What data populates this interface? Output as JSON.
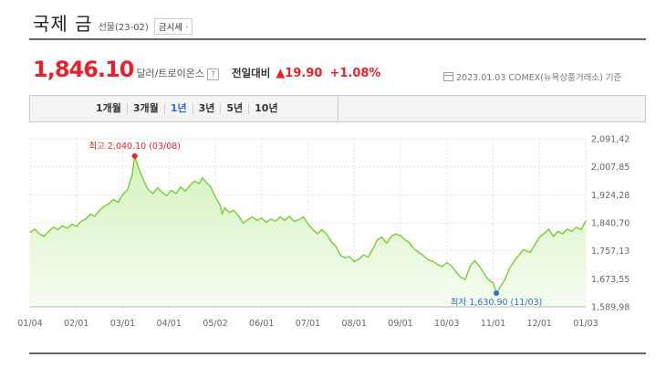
{
  "header": {
    "title": "국제 금",
    "subtitle": "선물(23-02)",
    "button_label": "금시세",
    "button_arrow": "›"
  },
  "quote": {
    "price": "1,846.10",
    "unit": "달러/트로이온스",
    "help": "?",
    "change_label": "전일대비",
    "change_value": "▲19.90",
    "change_pct": "+1.08%",
    "as_of": "2023.01.03  COMEX(뉴욕상품거래소) 기준"
  },
  "tabs": [
    {
      "label": "1개월",
      "active": false
    },
    {
      "label": "3개월",
      "active": false
    },
    {
      "label": "1년",
      "active": true
    },
    {
      "label": "3년",
      "active": false
    },
    {
      "label": "5년",
      "active": false
    },
    {
      "label": "10년",
      "active": false
    }
  ],
  "colors": {
    "accent_red": "#e8222c",
    "active_tab": "#2f6fd3",
    "line": "#79cc34",
    "fill_top": "#d4f2bd",
    "fill_bottom": "#f6fdf1",
    "low_marker": "#2f6fd3"
  },
  "chart_data": {
    "type": "area",
    "ylim": [
      1589.98,
      2091.42
    ],
    "y_ticks": [
      "2,091,42",
      "2,007,85",
      "1,924,28",
      "1,840,70",
      "1,757,13",
      "1,673,55",
      "1,589,98"
    ],
    "x_ticks": [
      "01/04",
      "02/01",
      "03/01",
      "04/01",
      "05/02",
      "06/01",
      "07/01",
      "08/01",
      "09/01",
      "10/03",
      "11/01",
      "12/01",
      "01/03"
    ],
    "grid": true,
    "high_label": "최고 2,040.10 (03/08)",
    "low_label": "최저 1,630.90 (11/03)",
    "high": {
      "x": 2.26,
      "y": 2040.1
    },
    "low": {
      "x": 10.07,
      "y": 1630.9
    },
    "series": [
      {
        "values": [
          [
            0,
            1812
          ],
          [
            0.1,
            1822
          ],
          [
            0.2,
            1808
          ],
          [
            0.3,
            1800
          ],
          [
            0.4,
            1815
          ],
          [
            0.5,
            1828
          ],
          [
            0.6,
            1820
          ],
          [
            0.7,
            1832
          ],
          [
            0.8,
            1824
          ],
          [
            0.9,
            1836
          ],
          [
            1.0,
            1830
          ],
          [
            1.1,
            1845
          ],
          [
            1.2,
            1852
          ],
          [
            1.3,
            1866
          ],
          [
            1.4,
            1860
          ],
          [
            1.5,
            1878
          ],
          [
            1.6,
            1890
          ],
          [
            1.7,
            1898
          ],
          [
            1.8,
            1910
          ],
          [
            1.9,
            1902
          ],
          [
            2.0,
            1925
          ],
          [
            2.1,
            1938
          ],
          [
            2.2,
            1982
          ],
          [
            2.26,
            2040.1
          ],
          [
            2.35,
            2000
          ],
          [
            2.45,
            1968
          ],
          [
            2.55,
            1940
          ],
          [
            2.65,
            1928
          ],
          [
            2.75,
            1945
          ],
          [
            2.85,
            1932
          ],
          [
            2.95,
            1922
          ],
          [
            3.05,
            1938
          ],
          [
            3.15,
            1928
          ],
          [
            3.25,
            1948
          ],
          [
            3.35,
            1935
          ],
          [
            3.45,
            1952
          ],
          [
            3.55,
            1965
          ],
          [
            3.65,
            1958
          ],
          [
            3.72,
            1975
          ],
          [
            3.8,
            1962
          ],
          [
            3.9,
            1948
          ],
          [
            4.0,
            1918
          ],
          [
            4.1,
            1895
          ],
          [
            4.15,
            1868
          ],
          [
            4.2,
            1885
          ],
          [
            4.3,
            1872
          ],
          [
            4.4,
            1878
          ],
          [
            4.5,
            1862
          ],
          [
            4.6,
            1840
          ],
          [
            4.7,
            1850
          ],
          [
            4.8,
            1858
          ],
          [
            4.9,
            1848
          ],
          [
            5.0,
            1855
          ],
          [
            5.1,
            1842
          ],
          [
            5.2,
            1852
          ],
          [
            5.3,
            1846
          ],
          [
            5.4,
            1858
          ],
          [
            5.5,
            1848
          ],
          [
            5.6,
            1860
          ],
          [
            5.7,
            1845
          ],
          [
            5.8,
            1850
          ],
          [
            5.9,
            1858
          ],
          [
            6.0,
            1838
          ],
          [
            6.1,
            1822
          ],
          [
            6.2,
            1808
          ],
          [
            6.3,
            1820
          ],
          [
            6.4,
            1808
          ],
          [
            6.5,
            1785
          ],
          [
            6.6,
            1772
          ],
          [
            6.7,
            1744
          ],
          [
            6.8,
            1736
          ],
          [
            6.9,
            1740
          ],
          [
            7.0,
            1725
          ],
          [
            7.1,
            1732
          ],
          [
            7.2,
            1745
          ],
          [
            7.3,
            1738
          ],
          [
            7.4,
            1762
          ],
          [
            7.5,
            1790
          ],
          [
            7.6,
            1798
          ],
          [
            7.7,
            1780
          ],
          [
            7.8,
            1800
          ],
          [
            7.9,
            1808
          ],
          [
            8.0,
            1802
          ],
          [
            8.1,
            1790
          ],
          [
            8.2,
            1780
          ],
          [
            8.3,
            1762
          ],
          [
            8.4,
            1752
          ],
          [
            8.5,
            1742
          ],
          [
            8.6,
            1730
          ],
          [
            8.7,
            1726
          ],
          [
            8.8,
            1716
          ],
          [
            8.9,
            1710
          ],
          [
            9.0,
            1722
          ],
          [
            9.1,
            1712
          ],
          [
            9.2,
            1694
          ],
          [
            9.3,
            1678
          ],
          [
            9.4,
            1672
          ],
          [
            9.5,
            1710
          ],
          [
            9.6,
            1728
          ],
          [
            9.7,
            1712
          ],
          [
            9.8,
            1690
          ],
          [
            9.9,
            1670
          ],
          [
            10.0,
            1662
          ],
          [
            10.07,
            1630.9
          ],
          [
            10.15,
            1648
          ],
          [
            10.25,
            1670
          ],
          [
            10.35,
            1705
          ],
          [
            10.5,
            1735
          ],
          [
            10.65,
            1760
          ],
          [
            10.8,
            1752
          ],
          [
            10.9,
            1775
          ],
          [
            11.0,
            1798
          ],
          [
            11.1,
            1808
          ],
          [
            11.2,
            1822
          ],
          [
            11.3,
            1800
          ],
          [
            11.4,
            1815
          ],
          [
            11.5,
            1808
          ],
          [
            11.6,
            1822
          ],
          [
            11.7,
            1815
          ],
          [
            11.8,
            1828
          ],
          [
            11.9,
            1820
          ],
          [
            12.0,
            1846.1
          ]
        ]
      }
    ]
  }
}
